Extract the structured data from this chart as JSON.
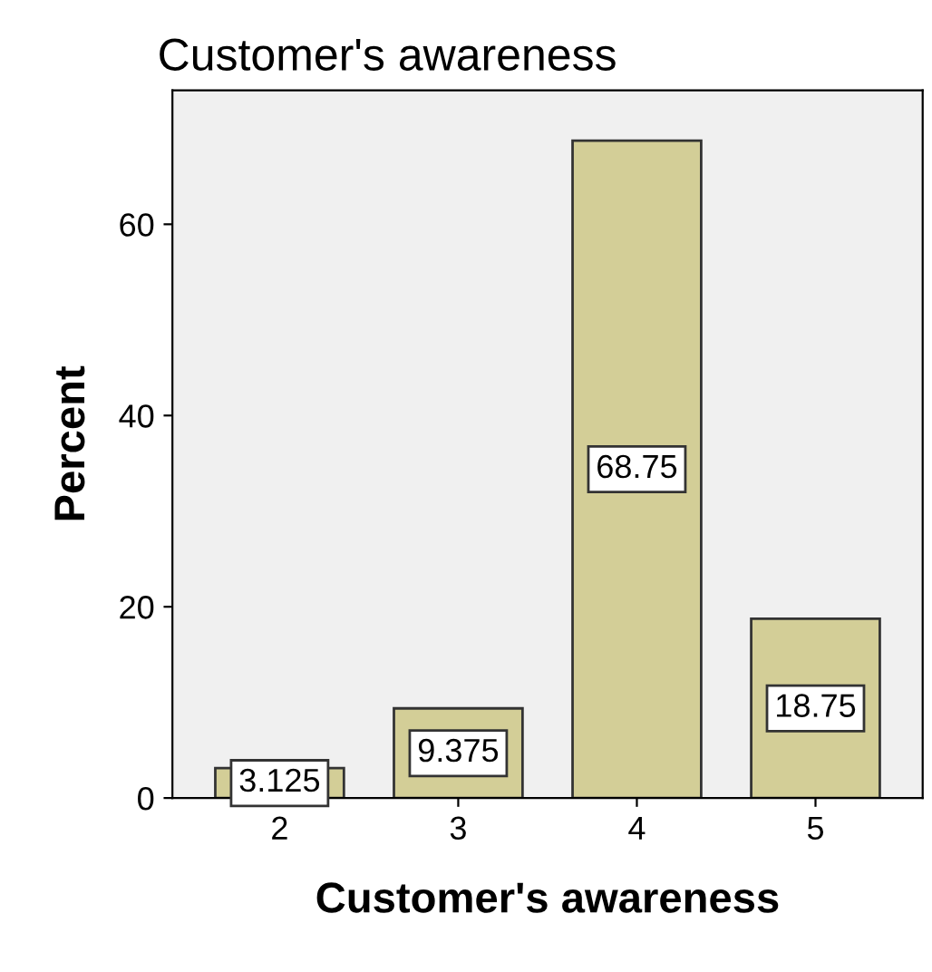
{
  "chart_data": {
    "type": "bar",
    "title": "Customer's awareness",
    "xlabel": "Customer's awareness",
    "ylabel": "Percent",
    "categories": [
      "2",
      "3",
      "4",
      "5"
    ],
    "values": [
      3.125,
      9.375,
      68.75,
      18.75
    ],
    "color": "#d3ce97",
    "ylim": [
      0,
      74
    ],
    "yticks": [
      0,
      20,
      40,
      60
    ],
    "data_labels": true,
    "grid": false,
    "legend": false
  }
}
